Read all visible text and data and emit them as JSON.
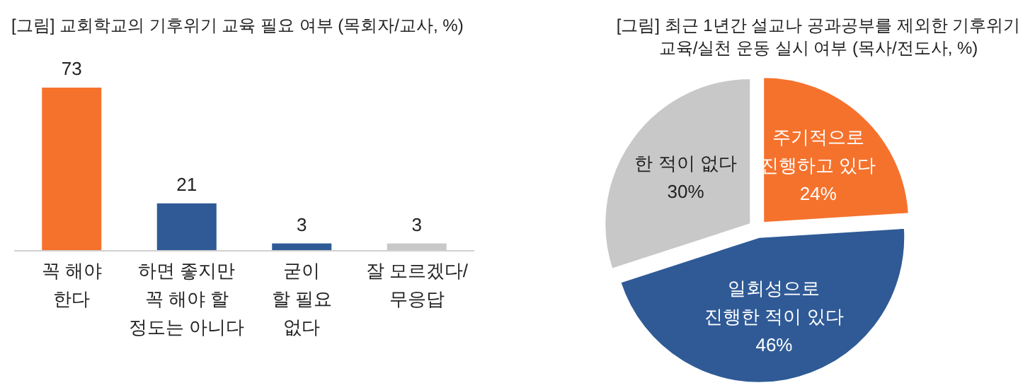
{
  "chart_data": [
    {
      "type": "bar",
      "title": "[그림] 교회학교의 기후위기 교육 필요 여부 (목회자/교사, %)",
      "categories": [
        "꼭 해야\n한다",
        "하면 좋지만\n꼭 해야 할\n정도는 아니다",
        "굳이\n할 필요\n없다",
        "잘 모르겠다/\n무응답"
      ],
      "values": [
        73,
        21,
        3,
        3
      ],
      "colors": [
        "#f5722d",
        "#2f5a96",
        "#2f5a96",
        "#c8c8c8"
      ],
      "data_labels": true
    },
    {
      "type": "pie",
      "title": "[그림] 최근 1년간 설교나 공과공부를 제외한 기후위기\n교육/실천 운동 실시 여부 (목사/전도사, %)",
      "categories": [
        "주기적으로\n진행하고 있다",
        "일회성으로\n진행한 적이 있다",
        "한 적이 없다"
      ],
      "values": [
        24,
        46,
        30
      ],
      "value_labels": [
        "24%",
        "46%",
        "30%"
      ],
      "colors": [
        "#f5722d",
        "#2f5a96",
        "#c8c8c8"
      ]
    }
  ]
}
